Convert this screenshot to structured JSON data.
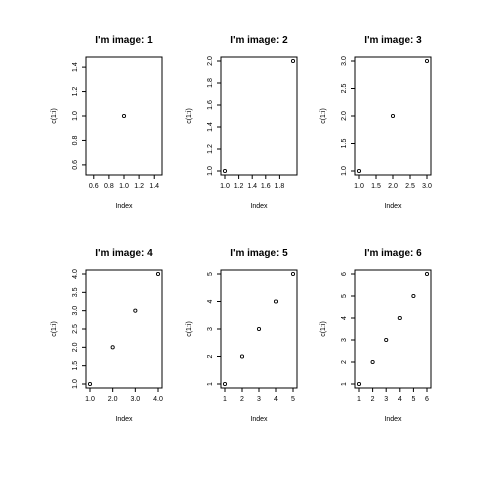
{
  "chart_data": [
    {
      "type": "scatter",
      "title": "I'm image: 1",
      "xlabel": "Index",
      "ylabel": "c(1:i)",
      "x": [
        1
      ],
      "y": [
        1
      ],
      "xlim": [
        0.55,
        1.45
      ],
      "ylim": [
        0.55,
        1.45
      ],
      "xticks": [
        "0.6",
        "0.8",
        "1.0",
        "1.2",
        "1.4"
      ],
      "yticks": [
        "0.6",
        "0.8",
        "1.0",
        "1.2",
        "1.4"
      ]
    },
    {
      "type": "scatter",
      "title": "I'm image: 2",
      "xlabel": "Index",
      "ylabel": "c(1:i)",
      "x": [
        1,
        2
      ],
      "y": [
        1,
        2
      ],
      "xlim": [
        1,
        2
      ],
      "ylim": [
        1,
        2
      ],
      "xticks": [
        "1.0",
        "1.2",
        "1.4",
        "1.6",
        "1.8"
      ],
      "yticks": [
        "1.0",
        "1.2",
        "1.4",
        "1.6",
        "1.8",
        "2.0"
      ]
    },
    {
      "type": "scatter",
      "title": "I'm image: 3",
      "xlabel": "Index",
      "ylabel": "c(1:i)",
      "x": [
        1,
        2,
        3
      ],
      "y": [
        1,
        2,
        3
      ],
      "xlim": [
        1,
        3
      ],
      "ylim": [
        1,
        3
      ],
      "xticks": [
        "1.0",
        "1.5",
        "2.0",
        "2.5",
        "3.0"
      ],
      "yticks": [
        "1.0",
        "1.5",
        "2.0",
        "2.5",
        "3.0"
      ]
    },
    {
      "type": "scatter",
      "title": "I'm image: 4",
      "xlabel": "Index",
      "ylabel": "c(1:i)",
      "x": [
        1,
        2,
        3,
        4
      ],
      "y": [
        1,
        2,
        3,
        4
      ],
      "xlim": [
        1,
        4
      ],
      "ylim": [
        1,
        4
      ],
      "xticks": [
        "1.0",
        "2.0",
        "3.0",
        "4.0"
      ],
      "yticks": [
        "1.0",
        "1.5",
        "2.0",
        "2.5",
        "3.0",
        "3.5",
        "4.0"
      ]
    },
    {
      "type": "scatter",
      "title": "I'm image: 5",
      "xlabel": "Index",
      "ylabel": "c(1:i)",
      "x": [
        1,
        2,
        3,
        4,
        5
      ],
      "y": [
        1,
        2,
        3,
        4,
        5
      ],
      "xlim": [
        1,
        5
      ],
      "ylim": [
        1,
        5
      ],
      "xticks": [
        "1",
        "2",
        "3",
        "4",
        "5"
      ],
      "yticks": [
        "1",
        "2",
        "3",
        "4",
        "5"
      ]
    },
    {
      "type": "scatter",
      "title": "I'm image: 6",
      "xlabel": "Index",
      "ylabel": "c(1:i)",
      "x": [
        1,
        2,
        3,
        4,
        5,
        6
      ],
      "y": [
        1,
        2,
        3,
        4,
        5,
        6
      ],
      "xlim": [
        1,
        6
      ],
      "ylim": [
        1,
        6
      ],
      "xticks": [
        "1",
        "2",
        "3",
        "4",
        "5",
        "6"
      ],
      "yticks": [
        "1",
        "2",
        "3",
        "4",
        "5",
        "6"
      ]
    }
  ]
}
